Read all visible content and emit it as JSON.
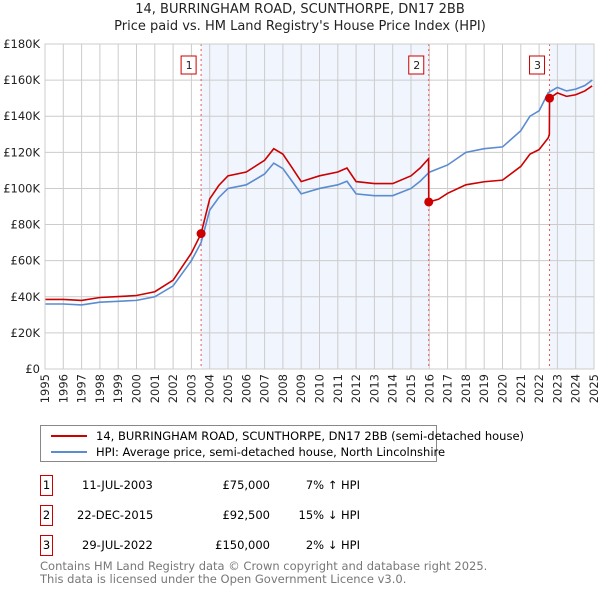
{
  "chart_data": {
    "type": "line",
    "title": "14, BURRINGHAM ROAD, SCUNTHORPE, DN17 2BB",
    "subtitle": "Price paid vs. HM Land Registry's House Price Index (HPI)",
    "xlim": [
      1995,
      2025
    ],
    "ylim": [
      0,
      180000
    ],
    "x_ticks": [
      "1995",
      "1996",
      "1997",
      "1998",
      "1999",
      "2000",
      "2001",
      "2002",
      "2003",
      "2004",
      "2005",
      "2006",
      "2007",
      "2008",
      "2009",
      "2010",
      "2011",
      "2012",
      "2013",
      "2014",
      "2015",
      "2016",
      "2017",
      "2018",
      "2019",
      "2020",
      "2021",
      "2022",
      "2023",
      "2024",
      "2025"
    ],
    "y_ticks": [
      "£0",
      "£20K",
      "£40K",
      "£60K",
      "£80K",
      "£100K",
      "£120K",
      "£140K",
      "£160K",
      "£180K"
    ],
    "grid": true,
    "series": [
      {
        "name": "14, BURRINGHAM ROAD, SCUNTHORPE, DN17 2BB (semi-detached house)",
        "color": "#cc0000",
        "x": [
          1995,
          1996,
          1997,
          1998,
          1999,
          2000,
          2001,
          2002,
          2003,
          2003.53,
          2004,
          2004.5,
          2005,
          2006,
          2007,
          2007.5,
          2008,
          2008.5,
          2009,
          2010,
          2011,
          2011.5,
          2012,
          2013,
          2014,
          2015,
          2015.5,
          2015.96,
          2015.97,
          2016.5,
          2017,
          2018,
          2019,
          2020,
          2021,
          2021.5,
          2022,
          2022.5,
          2022.56,
          2022.57,
          2023,
          2023.5,
          2024,
          2024.5,
          2024.9
        ],
        "y": [
          38500,
          38500,
          38000,
          39600,
          40100,
          40700,
          42800,
          49200,
          64200,
          75000,
          94200,
          101700,
          107000,
          109100,
          115600,
          122000,
          119000,
          111500,
          103800,
          107000,
          109100,
          111300,
          103800,
          102700,
          102700,
          107000,
          111300,
          116500,
          92500,
          94000,
          97300,
          102000,
          103700,
          104600,
          112200,
          119000,
          121500,
          128000,
          130000,
          150000,
          152900,
          151000,
          151900,
          154000,
          156800
        ]
      },
      {
        "name": "HPI: Average price, semi-detached house, North Lincolnshire",
        "color": "#5b8bd0",
        "x": [
          1995,
          1996,
          1997,
          1998,
          1999,
          2000,
          2001,
          2002,
          2003,
          2003.53,
          2004,
          2004.5,
          2005,
          2006,
          2007,
          2007.5,
          2008,
          2008.5,
          2009,
          2010,
          2011,
          2011.5,
          2012,
          2013,
          2014,
          2015,
          2015.5,
          2016,
          2017,
          2018,
          2019,
          2020,
          2021,
          2021.5,
          2022,
          2022.5,
          2023,
          2023.5,
          2024,
          2024.5,
          2024.9
        ],
        "y": [
          36000,
          36000,
          35500,
          37000,
          37500,
          38000,
          40000,
          46000,
          60000,
          70000,
          88000,
          95000,
          100000,
          102000,
          108000,
          114000,
          111000,
          104000,
          97000,
          100000,
          102000,
          104000,
          97000,
          96000,
          96000,
          100000,
          104000,
          109000,
          113000,
          120000,
          122000,
          123000,
          132000,
          140000,
          143000,
          153000,
          156000,
          154000,
          155000,
          157000,
          160000
        ]
      }
    ],
    "sales": [
      {
        "label": "1",
        "x": 2003.53,
        "y": 75000
      },
      {
        "label": "2",
        "x": 2015.97,
        "y": 92500
      },
      {
        "label": "3",
        "x": 2022.57,
        "y": 150000
      }
    ],
    "legend_placement": "below"
  },
  "table": [
    {
      "num": "1",
      "date": "11-JUL-2003",
      "price": "£75,000",
      "hpi": "7% ↑ HPI"
    },
    {
      "num": "2",
      "date": "22-DEC-2015",
      "price": "£92,500",
      "hpi": "15% ↓ HPI"
    },
    {
      "num": "3",
      "date": "29-JUL-2022",
      "price": "£150,000",
      "hpi": "2% ↓ HPI"
    }
  ],
  "footer": [
    "Contains HM Land Registry data © Crown copyright and database right 2025.",
    "This data is licensed under the Open Government Licence v3.0."
  ]
}
